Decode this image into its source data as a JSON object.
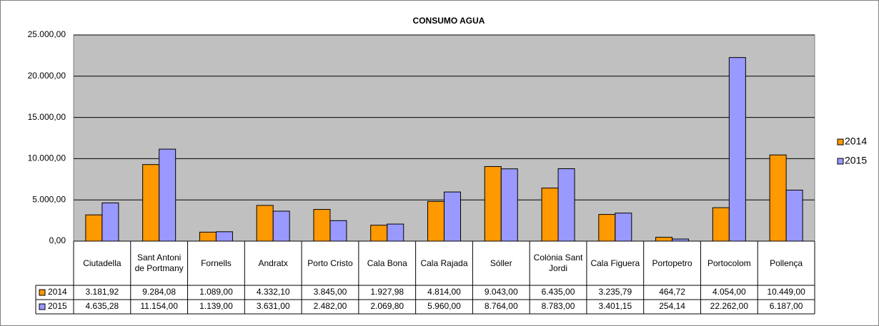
{
  "chart_data": {
    "type": "bar",
    "title": "CONSUMO AGUA",
    "categories": [
      "Ciutadella",
      "Sant Antoni de Portmany",
      "Fornells",
      "Andratx",
      "Porto Cristo",
      "Cala Bona",
      "Cala Rajada",
      "Sóller",
      "Colònia Sant Jordi",
      "Cala Figuera",
      "Portopetro",
      "Portocolom",
      "Pollença"
    ],
    "series": [
      {
        "name": "2014",
        "color": "#FF9900",
        "values": [
          3181.92,
          9284.08,
          1089,
          4332.1,
          3845,
          1927.98,
          4814,
          9043,
          6435,
          3235.79,
          464.72,
          4054,
          10449
        ],
        "value_labels": [
          "3.181,92",
          "9.284,08",
          "1.089,00",
          "4.332,10",
          "3.845,00",
          "1.927,98",
          "4.814,00",
          "9.043,00",
          "6.435,00",
          "3.235,79",
          "464,72",
          "4.054,00",
          "10.449,00"
        ]
      },
      {
        "name": "2015",
        "color": "#9999FF",
        "values": [
          4635.28,
          11154,
          1139,
          3631,
          2482,
          2069.8,
          5960,
          8764,
          8783,
          3401.15,
          254.14,
          22262,
          6187
        ],
        "value_labels": [
          "4.635,28",
          "11.154,00",
          "1.139,00",
          "3.631,00",
          "2.482,00",
          "2.069,80",
          "5.960,00",
          "8.764,00",
          "8.783,00",
          "3.401,15",
          "254,14",
          "22.262,00",
          "6.187,00"
        ]
      }
    ],
    "ylim": [
      0,
      25000
    ],
    "yticks": [
      {
        "value": 0,
        "label": "0,00"
      },
      {
        "value": 5000,
        "label": "5.000,00"
      },
      {
        "value": 10000,
        "label": "10.000,00"
      },
      {
        "value": 15000,
        "label": "15.000,00"
      },
      {
        "value": 20000,
        "label": "20.000,00"
      },
      {
        "value": 25000,
        "label": "25.000,00"
      }
    ],
    "grid": true,
    "legend": "right",
    "plot_background": "#C0C0C0"
  }
}
